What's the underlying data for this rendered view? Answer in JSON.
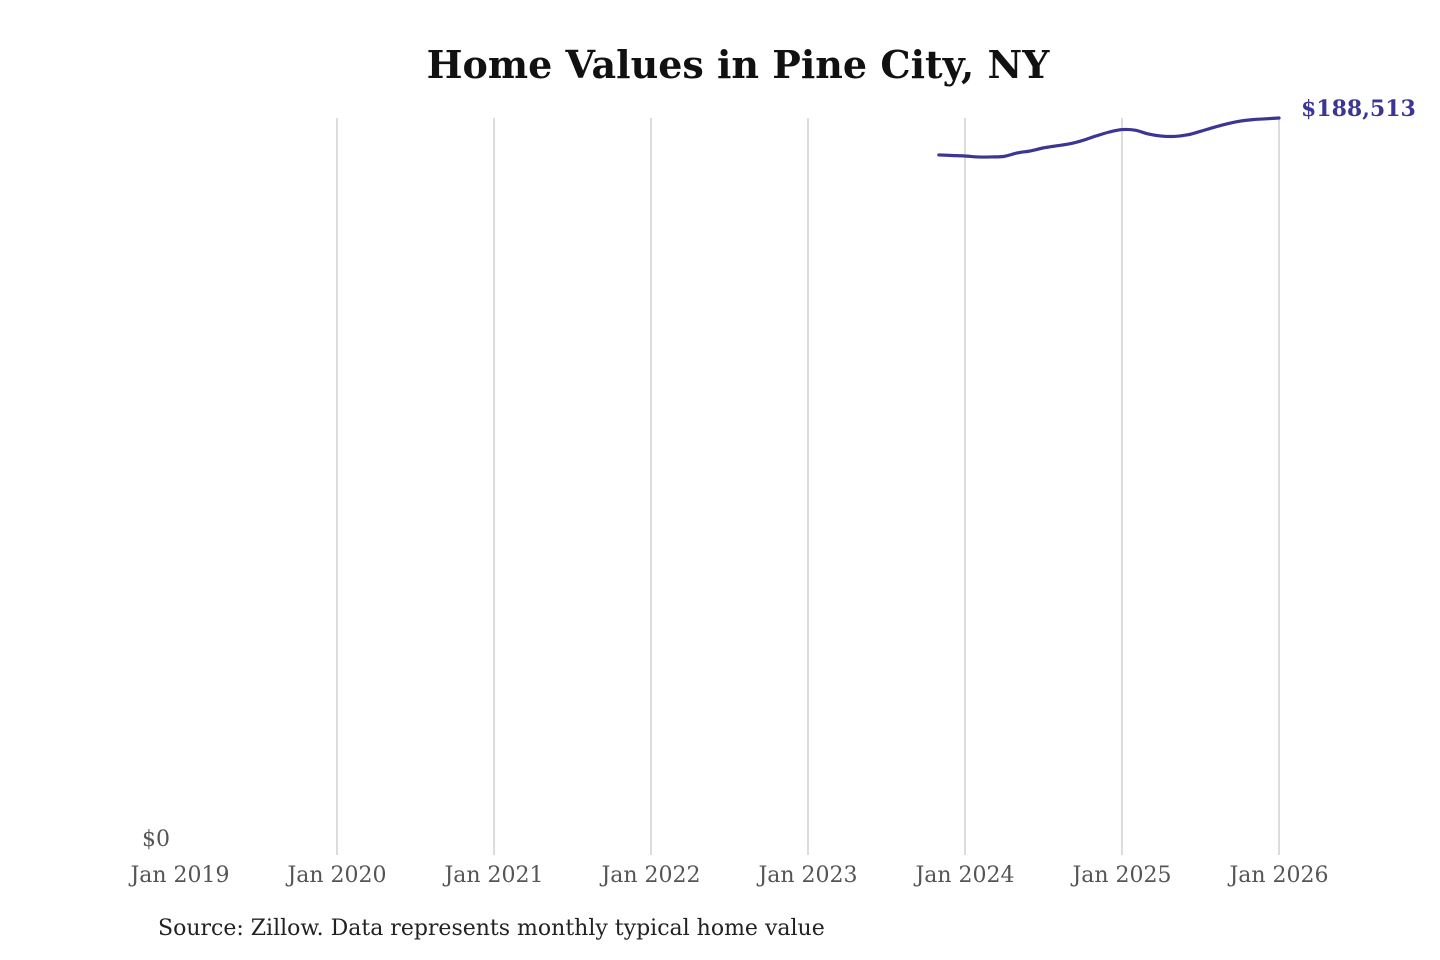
{
  "chart_data": {
    "type": "line",
    "title": "Home Values in Pine City, NY",
    "source": "Source: Zillow. Data represents monthly typical home value",
    "xlabel": "",
    "ylabel": "",
    "x_ticks": [
      "Jan 2019",
      "Jan 2020",
      "Jan 2021",
      "Jan 2022",
      "Jan 2023",
      "Jan 2024",
      "Jan 2025",
      "Jan 2026"
    ],
    "y_ticks": [
      "$0"
    ],
    "ylim": [
      0,
      188513
    ],
    "grid": "vertical",
    "series": [
      {
        "name": "Pine City, NY",
        "color": "#3b3593",
        "start": "Nov 2023",
        "end_label": "$188,513",
        "values": [
          179060,
          178930,
          178800,
          178550,
          178550,
          178700,
          179570,
          180100,
          180870,
          181400,
          181900,
          182770,
          183900,
          184900,
          185550,
          185400,
          184450,
          183900,
          183800,
          184200,
          185100,
          186100,
          187000,
          187700,
          188100,
          188300,
          188513
        ]
      }
    ]
  }
}
